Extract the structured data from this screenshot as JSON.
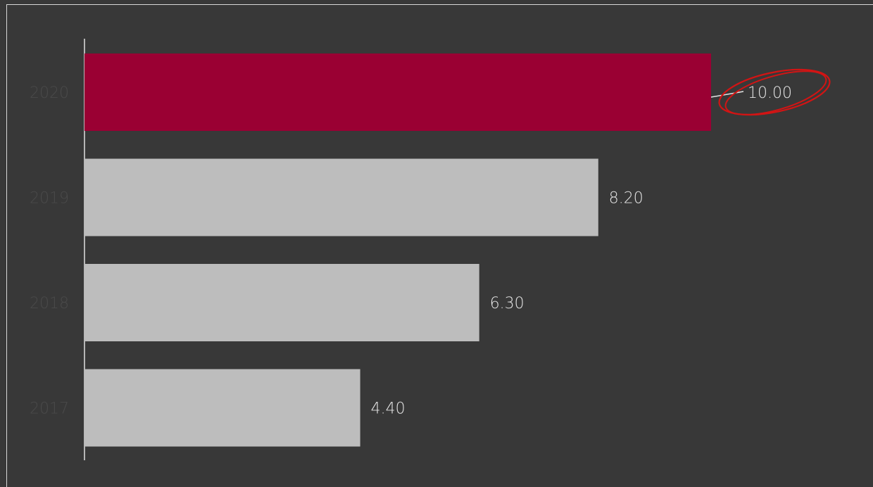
{
  "chart_data": {
    "type": "bar",
    "orientation": "horizontal",
    "categories": [
      "2020",
      "2019",
      "2018",
      "2017"
    ],
    "values": [
      10.0,
      8.2,
      6.3,
      4.4
    ],
    "value_labels": [
      "10.00",
      "8.20",
      "6.30",
      "4.40"
    ],
    "title": "",
    "xlabel": "",
    "ylabel": "",
    "xlim": [
      0,
      10
    ],
    "grid": false,
    "highlight_index": 0,
    "annotation": "red circle around highest value label",
    "colors": {
      "highlight": "#9a0033",
      "default": "#bdbdbd",
      "annotation": "#d21414",
      "background": "#383838"
    }
  }
}
